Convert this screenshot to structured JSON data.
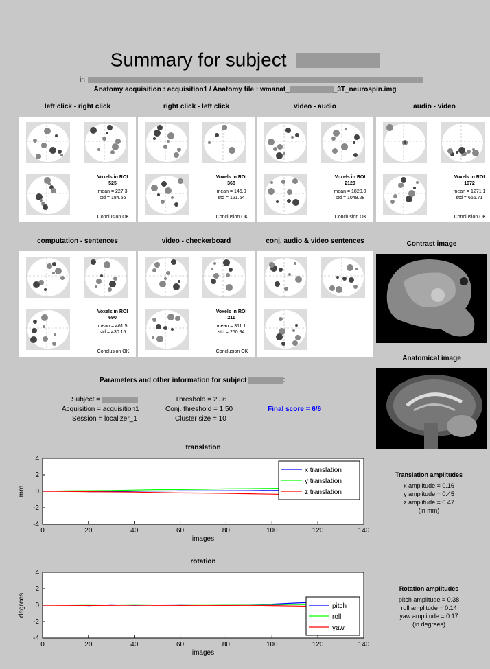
{
  "title": "Summary for subject",
  "in_label": "in",
  "anatomy_line": {
    "prefix": "Anatomy acquisition : acquisition1 / Anatomy file : wmanat_",
    "suffix": "_3T_neurospin.img"
  },
  "panels": [
    {
      "title": "left click - right click",
      "roi_label": "Voxels in ROI",
      "voxels": "525",
      "mean": "mean = 227.3",
      "std": "std = 184.56",
      "conclusion": "Conclusion OK"
    },
    {
      "title": "right click - left click",
      "roi_label": "Voxels in ROI",
      "voxels": "368",
      "mean": "mean = 146.0",
      "std": "std = 121.64",
      "conclusion": "Conclusion OK"
    },
    {
      "title": "video - audio",
      "roi_label": "Voxels in ROI",
      "voxels": "2120",
      "mean": "mean = 1820.0",
      "std": "std = 1049.28",
      "conclusion": "Conclusion OK"
    },
    {
      "title": "audio - video",
      "roi_label": "Voxels in ROI",
      "voxels": "1972",
      "mean": "mean = 1271.1",
      "std": "std = 656.71",
      "conclusion": "Conclusion OK"
    },
    {
      "title": "computation - sentences",
      "roi_label": "Voxels in ROI",
      "voxels": "690",
      "mean": "mean = 461.5",
      "std": "std = 430.15",
      "conclusion": "Conclusion OK"
    },
    {
      "title": "video - checkerboard",
      "roi_label": "Voxels in ROI",
      "voxels": "211",
      "mean": "mean = 311.1",
      "std": "std = 250.94",
      "conclusion": "Conclusion OK"
    },
    {
      "title": "conj. audio & video sentences"
    }
  ],
  "contrast_image_title": "Contrast image",
  "anatomical_image_title": "Anatomical image",
  "params": {
    "heading": "Parameters and other information for subject",
    "heading_suffix": ":",
    "subject": "Subject =",
    "acquisition": "Acquisition = acquisition1",
    "session": "Session = localizer_1",
    "threshold": "Threshold = 2.36",
    "conj_threshold": "Conj. threshold = 1.50",
    "cluster_size": "Cluster size = 10",
    "final_score": "Final score = 6/6",
    "final_score_color": "#0000ff"
  },
  "translation_amp": {
    "title": "Translation amplitudes",
    "x": "x amplitude = 0.16",
    "y": "y amplitude = 0.45",
    "z": "z amplitude = 0.47",
    "unit": "(in mm)"
  },
  "rotation_amp": {
    "title": "Rotation amplitudes",
    "pitch": "pitch amplitude = 0.38",
    "roll": "roll amplitude = 0.14",
    "yaw": "yaw amplitude = 0.17",
    "unit": "(in degrees)"
  },
  "chart_data": [
    {
      "type": "line",
      "title": "translation",
      "xlabel": "images",
      "ylabel": "mm",
      "xlim": [
        0,
        140
      ],
      "ylim": [
        -4,
        4
      ],
      "xticks": [
        0,
        20,
        40,
        60,
        80,
        100,
        120,
        140
      ],
      "yticks": [
        -4,
        -2,
        0,
        2,
        4
      ],
      "legend_position": "top-right",
      "x": [
        0,
        10,
        20,
        30,
        40,
        50,
        60,
        70,
        80,
        90,
        100,
        110,
        120
      ],
      "series": [
        {
          "name": "x translation",
          "color": "#0000ff",
          "values": [
            0,
            0.02,
            -0.05,
            -0.03,
            0.02,
            0.03,
            0.05,
            0.05,
            0.06,
            0.08,
            0.1,
            0.12,
            0.14
          ]
        },
        {
          "name": "y translation",
          "color": "#00ff00",
          "values": [
            0,
            0.05,
            0.08,
            0.1,
            0.15,
            0.2,
            0.22,
            0.25,
            0.3,
            0.33,
            0.36,
            0.4,
            0.45
          ]
        },
        {
          "name": "z translation",
          "color": "#ff0000",
          "values": [
            0,
            -0.02,
            -0.05,
            -0.08,
            -0.1,
            -0.15,
            -0.2,
            -0.22,
            -0.25,
            -0.3,
            -0.35,
            -0.4,
            -0.45
          ]
        }
      ]
    },
    {
      "type": "line",
      "title": "rotation",
      "xlabel": "images",
      "ylabel": "degrees",
      "xlim": [
        0,
        140
      ],
      "ylim": [
        -4,
        4
      ],
      "xticks": [
        0,
        20,
        40,
        60,
        80,
        100,
        120,
        140
      ],
      "yticks": [
        -4,
        -2,
        0,
        2,
        4
      ],
      "legend_position": "bottom-right",
      "x": [
        0,
        10,
        20,
        30,
        40,
        50,
        60,
        70,
        80,
        90,
        100,
        110,
        120
      ],
      "series": [
        {
          "name": "pitch",
          "color": "#0000ff",
          "values": [
            0,
            0.02,
            -0.05,
            0.05,
            -0.02,
            0.03,
            0.05,
            0.02,
            0.05,
            0.08,
            0.12,
            0.25,
            0.35
          ]
        },
        {
          "name": "roll",
          "color": "#00ff00",
          "values": [
            0,
            0.03,
            0.05,
            0.02,
            0.06,
            0.03,
            0.04,
            0.05,
            0.06,
            0.06,
            0.08,
            0.1,
            0.12
          ]
        },
        {
          "name": "yaw",
          "color": "#ff0000",
          "values": [
            0,
            -0.02,
            -0.03,
            -0.02,
            0.0,
            -0.02,
            -0.03,
            -0.02,
            -0.03,
            -0.02,
            -0.05,
            -0.1,
            -0.15
          ]
        }
      ]
    }
  ]
}
